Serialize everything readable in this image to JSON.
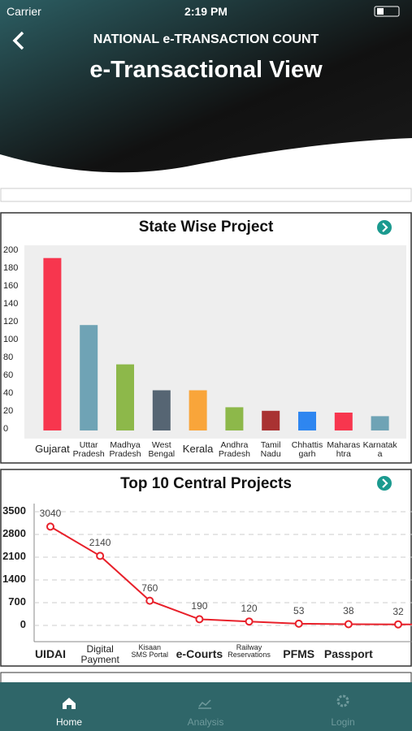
{
  "status": {
    "carrier": "Carrier",
    "time": "2:19 PM"
  },
  "header": {
    "subtitle": "NATIONAL e-TRANSACTION COUNT",
    "title": "e-Transactional View"
  },
  "chart_data": [
    {
      "type": "bar",
      "title": "State Wise Project",
      "categories": [
        "Gujarat",
        "Uttar\nPradesh",
        "Madhya\nPradesh",
        "West\nBengal",
        "Kerala",
        "Andhra\nPradesh",
        "Tamil\nNadu",
        "Chhattis\ngarh",
        "Maharas\nhtra",
        "Karnatak\na"
      ],
      "values": [
        193,
        118,
        74,
        45,
        45,
        26,
        22,
        21,
        20,
        16
      ],
      "colors": [
        "#f7364e",
        "#6fa3b5",
        "#8db84a",
        "#566573",
        "#f9a53a",
        "#8db84a",
        "#a93232",
        "#2e86f0",
        "#f7364e",
        "#6fa3b5"
      ],
      "ylim": [
        0,
        200
      ],
      "yticks": [
        0,
        20,
        40,
        60,
        80,
        100,
        120,
        140,
        160,
        180,
        200
      ]
    },
    {
      "type": "line",
      "title": "Top 10 Central Projects",
      "categories": [
        "UIDAI",
        "Digital\nPayment",
        "Kisaan\nSMS Portal",
        "e-Courts",
        "Railway\nReservations",
        "PFMS",
        "Passport",
        null
      ],
      "values": [
        3040,
        2140,
        760,
        190,
        120,
        53,
        38,
        32
      ],
      "color": "#e8202a",
      "grid": true,
      "ylim": [
        0,
        3500
      ],
      "yticks": [
        0,
        700,
        1400,
        2100,
        2800,
        3500
      ]
    }
  ],
  "tabs": [
    "Home",
    "Analysis",
    "Login"
  ]
}
